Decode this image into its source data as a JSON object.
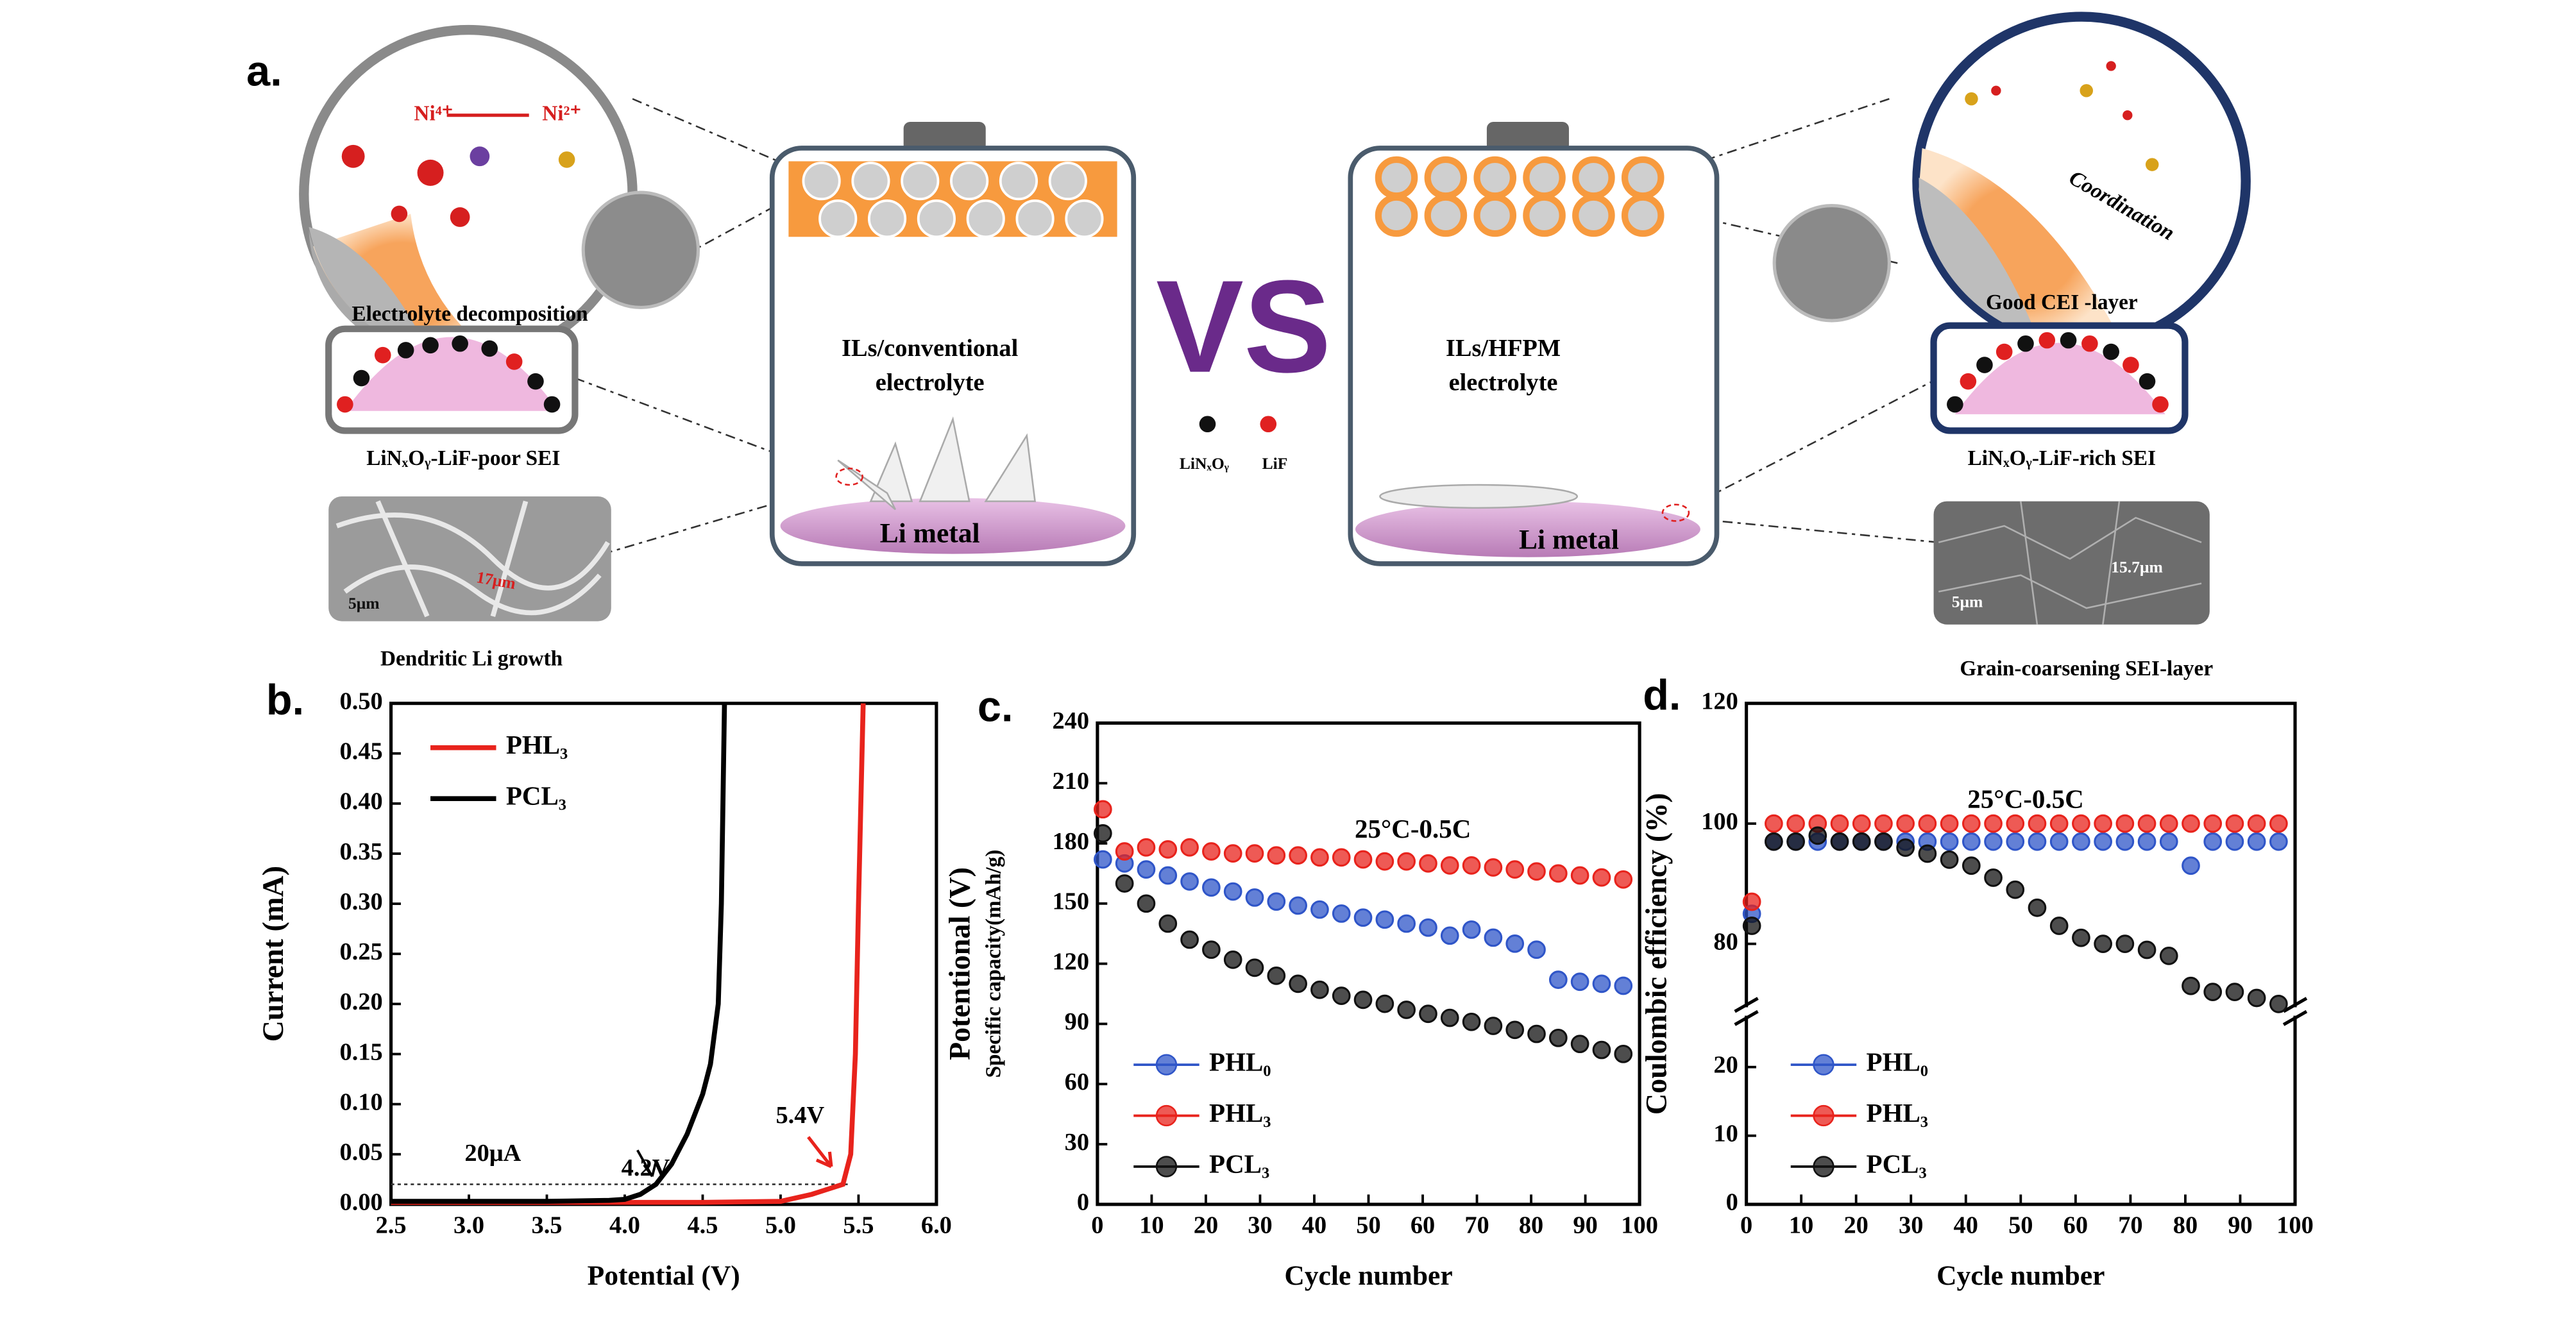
{
  "panel_a": {
    "label": "a.",
    "ni4": "Ni⁴⁺",
    "ni2": "Ni²⁺",
    "decomposition": "Electrolyte decomposition",
    "poor_sei": "LiNₓOᵧ-LiF-poor SEI",
    "scale_left": "5μm",
    "dendrite_size": "17μm",
    "dendritic": "Dendritic Li growth",
    "left_battery": [
      "ILs/conventional",
      "electrolyte"
    ],
    "li_metal_left": "Li metal",
    "vs": "VS",
    "legend": [
      "LiNₓOᵧ",
      "LiF"
    ],
    "right_battery": [
      "ILs/HFPM",
      "electrolyte"
    ],
    "li_metal_right": "Li metal",
    "coordination": "Coordination",
    "good_cei": "Good CEI -layer",
    "rich_sei": "LiNₓOᵧ-LiF-rich SEI",
    "scale_right": "5μm",
    "grain_size": "15.7μm",
    "grain": "Grain-coarsening SEI-layer"
  },
  "chart_data": [
    {
      "type": "line",
      "label": "b.",
      "xlabel": "Potential (V)",
      "ylabel": "Current (mA)",
      "legend": "upper left",
      "xlim": [
        2.5,
        6.0
      ],
      "xticks": [
        2.5,
        {
          "value": 3.0,
          "label": "3.0"
        },
        3.5,
        {
          "value": 4.0,
          "label": "4.0"
        },
        4.5,
        {
          "value": 5.0,
          "label": "5.0"
        },
        5.5,
        {
          "value": 6.0,
          "label": "6.0"
        }
      ],
      "ylim": [
        0,
        0.5
      ],
      "yticks": [
        {
          "value": 0,
          "label": "0.00"
        },
        0.05,
        {
          "value": 0.1,
          "label": "0.10"
        },
        0.15,
        {
          "value": 0.2,
          "label": "0.20"
        },
        0.25,
        {
          "value": 0.3,
          "label": "0.30"
        },
        0.35,
        {
          "value": 0.4,
          "label": "0.40"
        },
        0.45,
        {
          "value": 0.5,
          "label": "0.50"
        }
      ],
      "hline": 0.02,
      "annotations": [
        "20μA",
        "4.2V",
        "5.4V"
      ],
      "series": [
        {
          "name": "PHL₃",
          "color": "#e8231c",
          "x": [
            2.5,
            3.5,
            4.5,
            5.0,
            5.2,
            5.3,
            5.4,
            5.45,
            5.48,
            5.5,
            5.53
          ],
          "values": [
            0.002,
            0.002,
            0.002,
            0.003,
            0.01,
            0.015,
            0.02,
            0.05,
            0.15,
            0.3,
            0.5
          ]
        },
        {
          "name": "PCL₃",
          "color": "#000000",
          "x": [
            2.5,
            3.5,
            3.9,
            4.0,
            4.1,
            4.2,
            4.3,
            4.4,
            4.5,
            4.55,
            4.6,
            4.62,
            4.64
          ],
          "values": [
            0.003,
            0.003,
            0.004,
            0.005,
            0.01,
            0.02,
            0.04,
            0.07,
            0.11,
            0.14,
            0.2,
            0.3,
            0.5
          ]
        }
      ]
    },
    {
      "type": "scatter",
      "label": "c.",
      "xlabel": "Cycle number",
      "ylabel": [
        "Potentional (V)",
        "Specific capacity(mAh/g)"
      ],
      "annotation": "25°C-0.5C",
      "legend": "lower left",
      "xlim": [
        0,
        100
      ],
      "xticks": [
        0,
        10,
        20,
        30,
        40,
        50,
        60,
        70,
        80,
        90,
        100
      ],
      "ylim": [
        0,
        240
      ],
      "yticks": [
        0,
        30,
        60,
        90,
        120,
        150,
        180,
        210,
        240
      ],
      "x": [
        1,
        5,
        9,
        13,
        17,
        21,
        25,
        29,
        33,
        37,
        41,
        45,
        49,
        53,
        57,
        61,
        65,
        69,
        73,
        77,
        81,
        85,
        89,
        93,
        97
      ],
      "series": [
        {
          "name": "PHL₀",
          "color": "#2f55c8",
          "values": [
            172,
            170,
            167,
            164,
            161,
            158,
            156,
            153,
            151,
            149,
            147,
            145,
            143,
            142,
            140,
            138,
            134,
            137,
            133,
            130,
            127,
            112,
            111,
            110,
            109
          ]
        },
        {
          "name": "PHL₃",
          "color": "#e8231c",
          "values": [
            197,
            176,
            178,
            177,
            178,
            176,
            175,
            175,
            174,
            174,
            173,
            173,
            172,
            171,
            171,
            170,
            169,
            169,
            168,
            167,
            166,
            165,
            164,
            163,
            162
          ]
        },
        {
          "name": "PCL₃",
          "color": "#111111",
          "values": [
            185,
            160,
            150,
            140,
            132,
            127,
            122,
            118,
            114,
            110,
            107,
            104,
            102,
            100,
            97,
            95,
            93,
            91,
            89,
            87,
            85,
            83,
            80,
            77,
            75
          ]
        }
      ]
    },
    {
      "type": "scatter",
      "label": "d.",
      "xlabel": "Cycle number",
      "ylabel": "Coulombic efficiency (%)",
      "annotation": "25°C-0.5C",
      "legend": "lower left",
      "xlim": [
        0,
        100
      ],
      "xticks": [
        0,
        10,
        20,
        30,
        40,
        50,
        60,
        70,
        80,
        90,
        100
      ],
      "ylim": [
        0,
        120
      ],
      "ybreak": [
        27,
        70
      ],
      "yticks": [
        0,
        10,
        20,
        80,
        100,
        120
      ],
      "x": [
        1,
        5,
        9,
        13,
        17,
        21,
        25,
        29,
        33,
        37,
        41,
        45,
        49,
        53,
        57,
        61,
        65,
        69,
        73,
        77,
        81,
        85,
        89,
        93,
        97
      ],
      "series": [
        {
          "name": "PHL₀",
          "color": "#2f55c8",
          "values": [
            85,
            97,
            97,
            97,
            97,
            97,
            97,
            97,
            97,
            97,
            97,
            97,
            97,
            97,
            97,
            97,
            97,
            97,
            97,
            97,
            93,
            97,
            97,
            97,
            97
          ]
        },
        {
          "name": "PHL₃",
          "color": "#e8231c",
          "values": [
            87,
            100,
            100,
            100,
            100,
            100,
            100,
            100,
            100,
            100,
            100,
            100,
            100,
            100,
            100,
            100,
            100,
            100,
            100,
            100,
            100,
            100,
            100,
            100,
            100
          ]
        },
        {
          "name": "PCL₃",
          "color": "#111111",
          "values": [
            83,
            97,
            97,
            98,
            97,
            97,
            97,
            96,
            95,
            94,
            93,
            91,
            89,
            86,
            83,
            81,
            80,
            80,
            79,
            78,
            73,
            72,
            72,
            71,
            70
          ]
        }
      ]
    }
  ]
}
